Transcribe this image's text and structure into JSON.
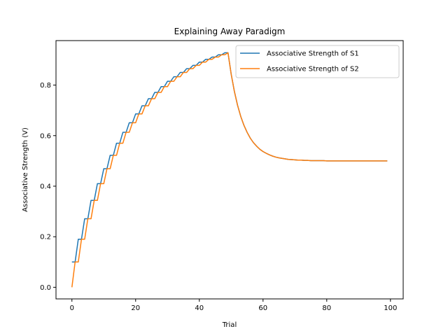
{
  "chart_data": {
    "type": "line",
    "title": "Explaining Away Paradigm",
    "xlabel": "Trial",
    "ylabel": "Associative Strength (V)",
    "xlim": [
      -5,
      104
    ],
    "ylim": [
      -0.046,
      0.976
    ],
    "xticks": [
      0,
      20,
      40,
      60,
      80,
      100
    ],
    "yticks": [
      0.0,
      0.2,
      0.4,
      0.6,
      0.8
    ],
    "xtick_labels": [
      "0",
      "20",
      "40",
      "60",
      "80",
      "100"
    ],
    "ytick_labels": [
      "0.0",
      "0.2",
      "0.4",
      "0.6",
      "0.8"
    ],
    "grid": false,
    "legend_position": "top-right",
    "series": [
      {
        "name": "Associative Strength of S1",
        "color": "#1f77b4",
        "x": [
          0,
          1,
          2,
          3,
          4,
          5,
          6,
          7,
          8,
          9,
          10,
          11,
          12,
          13,
          14,
          15,
          16,
          17,
          18,
          19,
          20,
          21,
          22,
          23,
          24,
          25,
          26,
          27,
          28,
          29,
          30,
          31,
          32,
          33,
          34,
          35,
          36,
          37,
          38,
          39,
          40,
          41,
          42,
          43,
          44,
          45,
          46,
          47,
          48,
          49,
          50,
          51,
          52,
          53,
          54,
          55,
          56,
          57,
          58,
          59,
          60,
          61,
          62,
          63,
          64,
          65,
          66,
          67,
          68,
          69,
          70,
          71,
          72,
          73,
          74,
          75,
          76,
          77,
          78,
          79,
          80,
          81,
          82,
          83,
          84,
          85,
          86,
          87,
          88,
          89,
          90,
          91,
          92,
          93,
          94,
          95,
          96,
          97,
          98,
          99
        ],
        "y": [
          0.1,
          0.1,
          0.19,
          0.19,
          0.271,
          0.271,
          0.344,
          0.344,
          0.41,
          0.41,
          0.469,
          0.469,
          0.522,
          0.522,
          0.57,
          0.57,
          0.613,
          0.613,
          0.651,
          0.651,
          0.686,
          0.686,
          0.718,
          0.718,
          0.746,
          0.746,
          0.771,
          0.771,
          0.794,
          0.794,
          0.815,
          0.815,
          0.833,
          0.833,
          0.85,
          0.85,
          0.865,
          0.865,
          0.878,
          0.878,
          0.891,
          0.891,
          0.902,
          0.902,
          0.911,
          0.911,
          0.92,
          0.92,
          0.928,
          0.928,
          0.843,
          0.775,
          0.72,
          0.676,
          0.641,
          0.613,
          0.59,
          0.572,
          0.558,
          0.546,
          0.537,
          0.53,
          0.524,
          0.519,
          0.515,
          0.512,
          0.51,
          0.508,
          0.506,
          0.505,
          0.504,
          0.503,
          0.503,
          0.502,
          0.502,
          0.501,
          0.501,
          0.501,
          0.501,
          0.501,
          0.5,
          0.5,
          0.5,
          0.5,
          0.5,
          0.5,
          0.5,
          0.5,
          0.5,
          0.5,
          0.5,
          0.5,
          0.5,
          0.5,
          0.5,
          0.5,
          0.5,
          0.5,
          0.5,
          0.5
        ]
      },
      {
        "name": "Associative Strength of S2",
        "color": "#ff7f0e",
        "x": [
          0,
          1,
          2,
          3,
          4,
          5,
          6,
          7,
          8,
          9,
          10,
          11,
          12,
          13,
          14,
          15,
          16,
          17,
          18,
          19,
          20,
          21,
          22,
          23,
          24,
          25,
          26,
          27,
          28,
          29,
          30,
          31,
          32,
          33,
          34,
          35,
          36,
          37,
          38,
          39,
          40,
          41,
          42,
          43,
          44,
          45,
          46,
          47,
          48,
          49,
          50,
          51,
          52,
          53,
          54,
          55,
          56,
          57,
          58,
          59,
          60,
          61,
          62,
          63,
          64,
          65,
          66,
          67,
          68,
          69,
          70,
          71,
          72,
          73,
          74,
          75,
          76,
          77,
          78,
          79,
          80,
          81,
          82,
          83,
          84,
          85,
          86,
          87,
          88,
          89,
          90,
          91,
          92,
          93,
          94,
          95,
          96,
          97,
          98,
          99
        ],
        "y": [
          0.0,
          0.1,
          0.1,
          0.19,
          0.19,
          0.271,
          0.271,
          0.344,
          0.344,
          0.41,
          0.41,
          0.469,
          0.469,
          0.522,
          0.522,
          0.57,
          0.57,
          0.613,
          0.613,
          0.651,
          0.651,
          0.686,
          0.686,
          0.718,
          0.718,
          0.746,
          0.746,
          0.771,
          0.771,
          0.794,
          0.794,
          0.815,
          0.815,
          0.833,
          0.833,
          0.85,
          0.85,
          0.865,
          0.865,
          0.878,
          0.878,
          0.891,
          0.891,
          0.902,
          0.902,
          0.911,
          0.911,
          0.92,
          0.92,
          0.928,
          0.843,
          0.775,
          0.72,
          0.676,
          0.641,
          0.613,
          0.59,
          0.572,
          0.558,
          0.546,
          0.537,
          0.53,
          0.524,
          0.519,
          0.515,
          0.512,
          0.51,
          0.508,
          0.506,
          0.505,
          0.504,
          0.503,
          0.503,
          0.502,
          0.502,
          0.501,
          0.501,
          0.501,
          0.501,
          0.501,
          0.5,
          0.5,
          0.5,
          0.5,
          0.5,
          0.5,
          0.5,
          0.5,
          0.5,
          0.5,
          0.5,
          0.5,
          0.5,
          0.5,
          0.5,
          0.5,
          0.5,
          0.5,
          0.5,
          0.5
        ]
      }
    ]
  }
}
